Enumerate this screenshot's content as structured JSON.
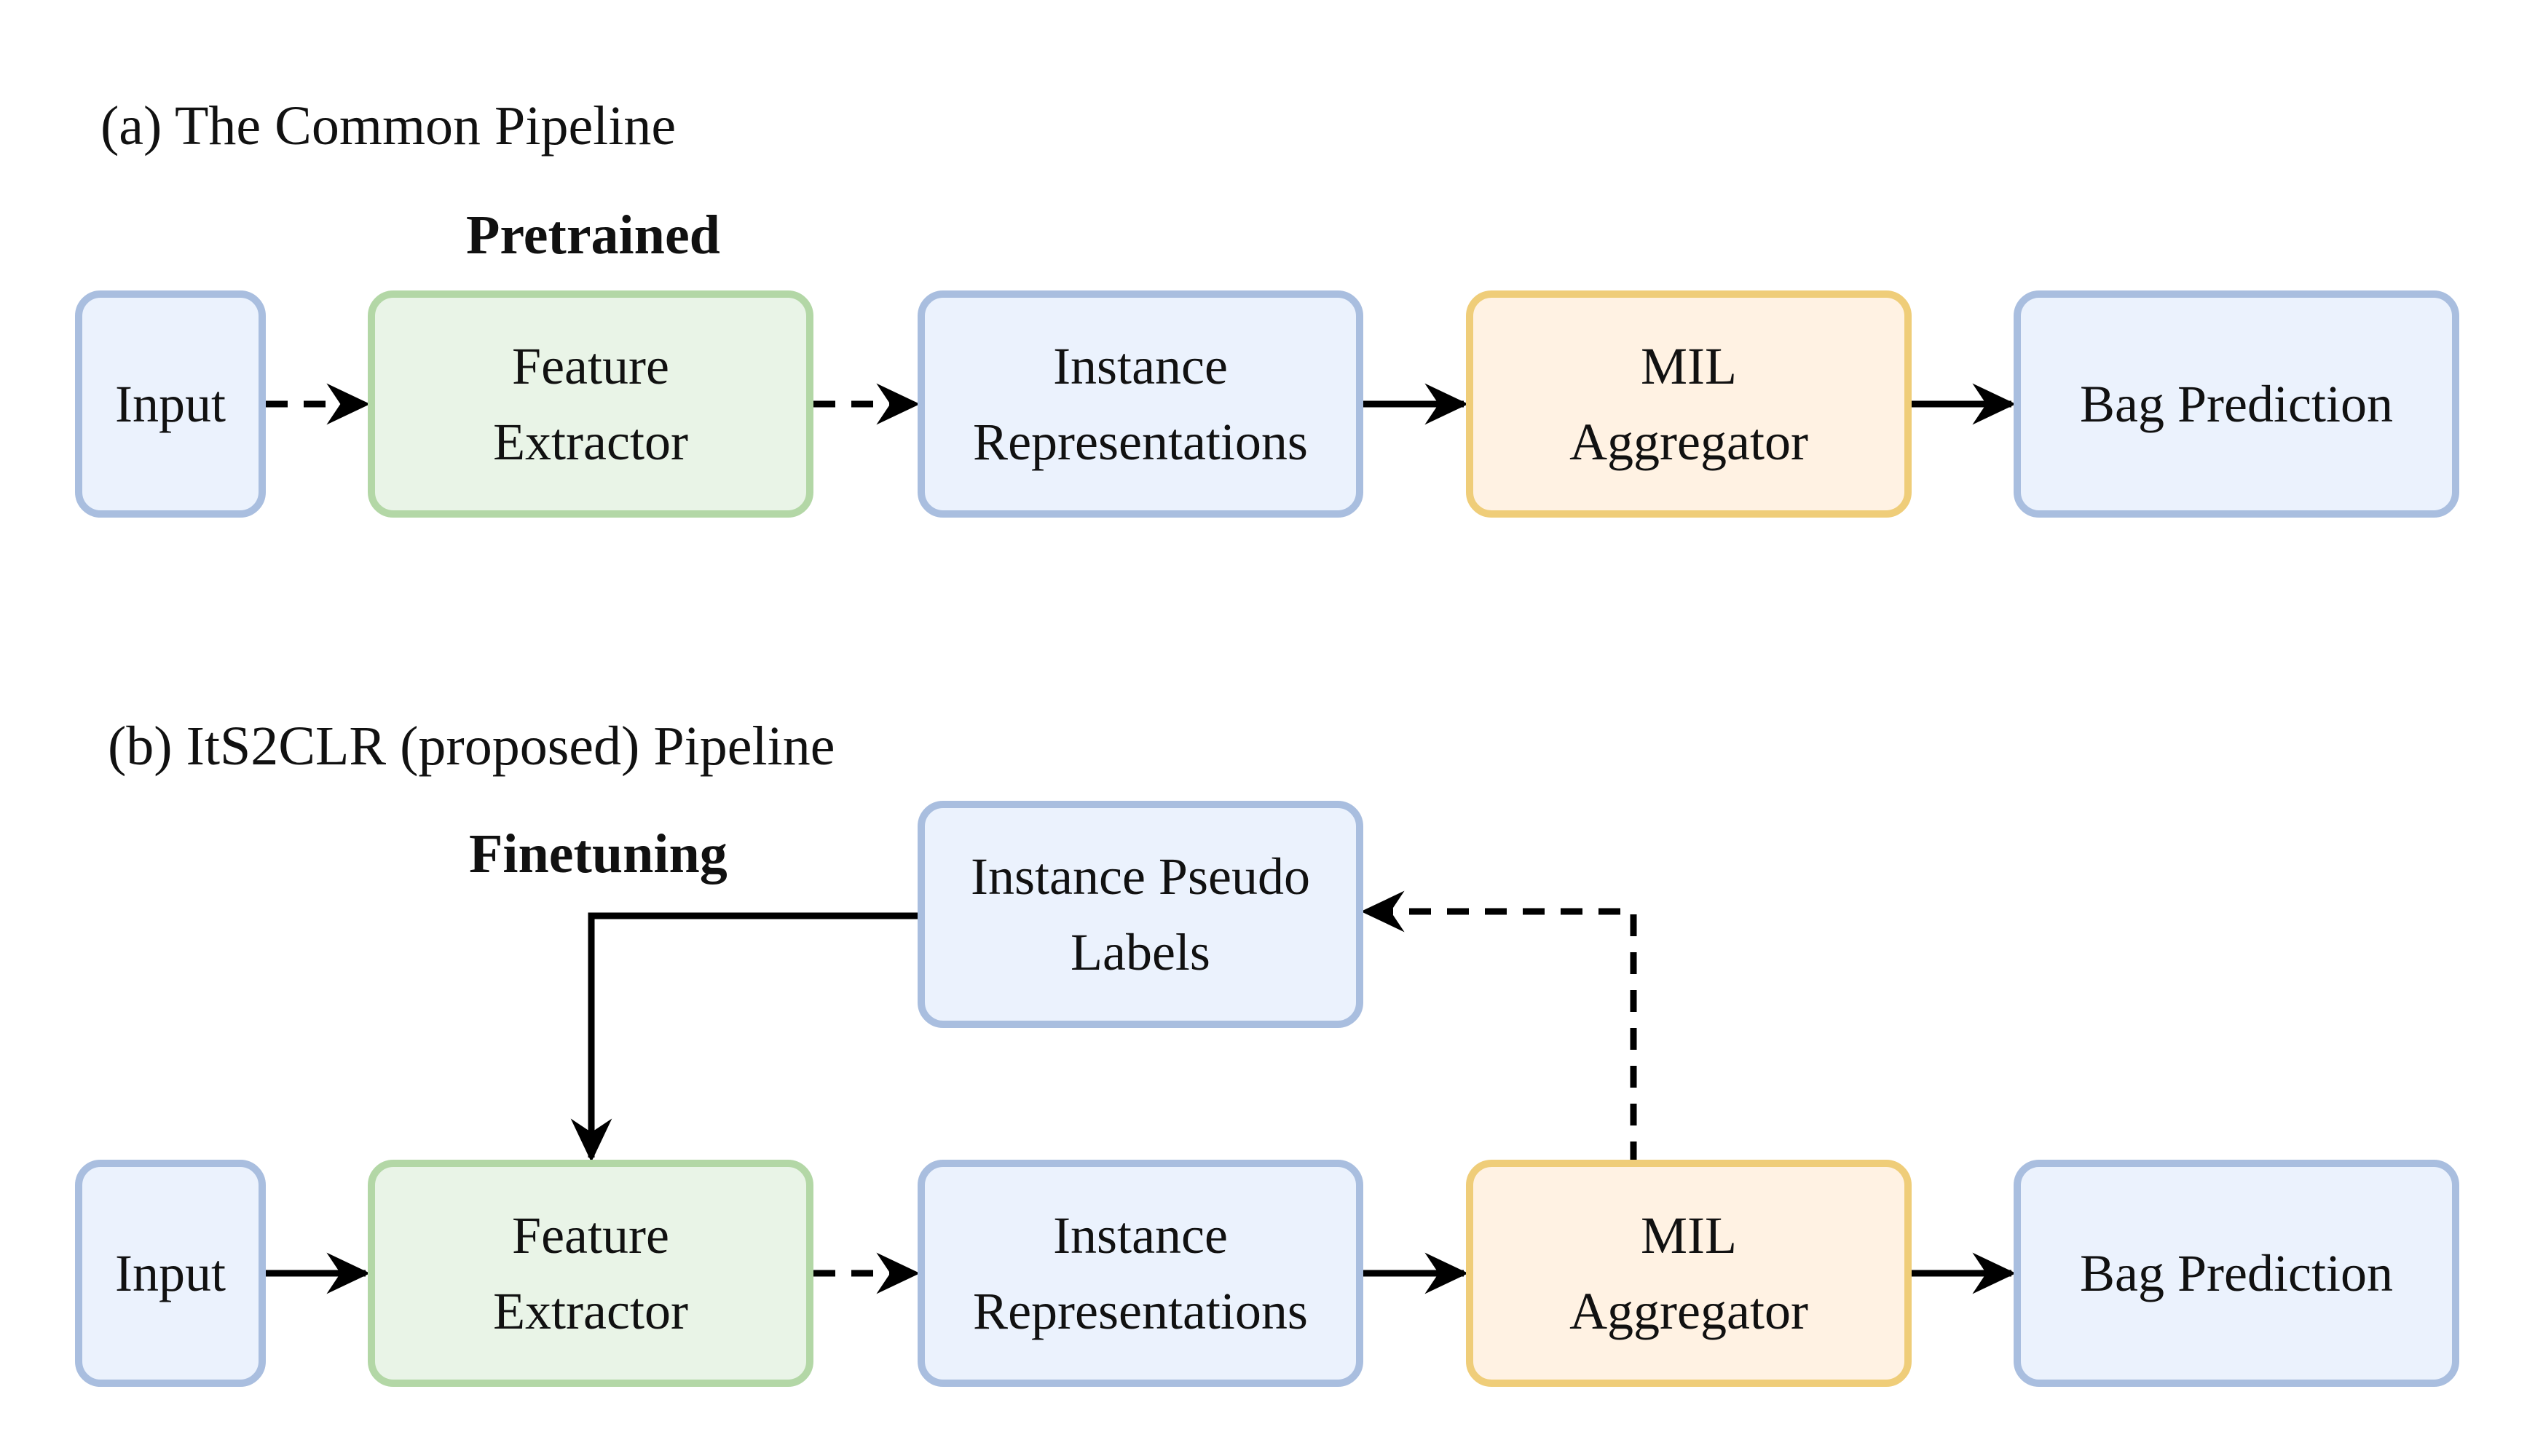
{
  "colors": {
    "blue_fill": "#ebf2fd",
    "blue_stroke": "#a9bedf",
    "green_fill": "#e9f4e7",
    "green_stroke": "#b3d7a6",
    "orange_fill": "#fff2e3",
    "orange_stroke": "#efcd79",
    "arrow": "#000000"
  },
  "panel_a": {
    "title": "(a) The Common Pipeline",
    "stage_label": "Pretrained",
    "nodes": {
      "input": {
        "lines": [
          "Input"
        ],
        "style": "blue"
      },
      "feature_extractor": {
        "lines": [
          "Feature",
          "Extractor"
        ],
        "style": "green"
      },
      "instance_representations": {
        "lines": [
          "Instance",
          "Representations"
        ],
        "style": "blue"
      },
      "mil_aggregator": {
        "lines": [
          "MIL",
          "Aggregator"
        ],
        "style": "orange"
      },
      "bag_prediction": {
        "lines": [
          "Bag Prediction"
        ],
        "style": "blue"
      }
    },
    "edges": [
      {
        "from": "input",
        "to": "feature_extractor",
        "dashed": true
      },
      {
        "from": "feature_extractor",
        "to": "instance_representations",
        "dashed": true
      },
      {
        "from": "instance_representations",
        "to": "mil_aggregator",
        "dashed": false
      },
      {
        "from": "mil_aggregator",
        "to": "bag_prediction",
        "dashed": false
      }
    ]
  },
  "panel_b": {
    "title": "(b) ItS2CLR (proposed) Pipeline",
    "stage_label": "Finetuning",
    "nodes": {
      "pseudo_labels": {
        "lines": [
          "Instance Pseudo",
          "Labels"
        ],
        "style": "blue"
      },
      "input": {
        "lines": [
          "Input"
        ],
        "style": "blue"
      },
      "feature_extractor": {
        "lines": [
          "Feature",
          "Extractor"
        ],
        "style": "green"
      },
      "instance_representations": {
        "lines": [
          "Instance",
          "Representations"
        ],
        "style": "blue"
      },
      "mil_aggregator": {
        "lines": [
          "MIL",
          "Aggregator"
        ],
        "style": "orange"
      },
      "bag_prediction": {
        "lines": [
          "Bag Prediction"
        ],
        "style": "blue"
      }
    },
    "edges": [
      {
        "from": "input",
        "to": "feature_extractor",
        "dashed": false
      },
      {
        "from": "feature_extractor",
        "to": "instance_representations",
        "dashed": true
      },
      {
        "from": "instance_representations",
        "to": "mil_aggregator",
        "dashed": false
      },
      {
        "from": "mil_aggregator",
        "to": "bag_prediction",
        "dashed": false
      },
      {
        "from": "pseudo_labels",
        "to": "feature_extractor",
        "dashed": false
      },
      {
        "from": "mil_aggregator",
        "to": "pseudo_labels",
        "dashed": true
      }
    ]
  }
}
